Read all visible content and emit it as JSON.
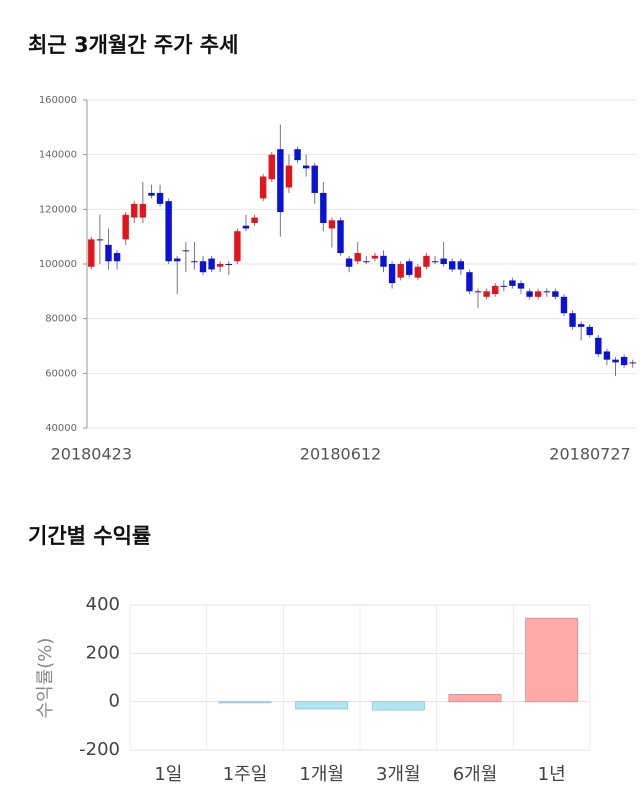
{
  "chart_data": [
    {
      "type": "candlestick",
      "title": "최근 3개월간 주가 추세",
      "categories": [
        "20180423",
        null,
        null,
        null,
        null,
        null,
        null,
        null,
        null,
        null,
        null,
        null,
        null,
        null,
        null,
        null,
        null,
        null,
        null,
        null,
        null,
        null,
        null,
        null,
        null,
        null,
        null,
        null,
        null,
        "20180612",
        null,
        null,
        null,
        null,
        null,
        null,
        null,
        null,
        null,
        null,
        null,
        null,
        null,
        null,
        null,
        null,
        null,
        null,
        null,
        null,
        null,
        null,
        null,
        null,
        null,
        null,
        null,
        null,
        null,
        null,
        null,
        null,
        null,
        "20180727"
      ],
      "open": [
        99000,
        109000,
        107000,
        104000,
        109000,
        117000,
        117000,
        126000,
        126000,
        123000,
        102000,
        105000,
        101000,
        101000,
        102000,
        99000,
        100000,
        101000,
        114000,
        115000,
        124000,
        131000,
        142000,
        128000,
        142000,
        136000,
        136000,
        126000,
        113000,
        116000,
        102000,
        101000,
        101000,
        102000,
        103000,
        100000,
        95000,
        101000,
        95000,
        99000,
        101000,
        102000,
        101000,
        101000,
        97000,
        90000,
        88000,
        89000,
        92000,
        94000,
        93000,
        90000,
        88000,
        90000,
        90000,
        88000,
        82000,
        78000,
        77000,
        73000,
        68000,
        65000,
        66000,
        64000
      ],
      "high": [
        110000,
        118000,
        113000,
        105000,
        119000,
        123000,
        130000,
        129000,
        129000,
        124000,
        103000,
        108000,
        108000,
        103000,
        103000,
        101000,
        101000,
        113000,
        118000,
        118000,
        133000,
        141000,
        151000,
        140000,
        143000,
        140000,
        137000,
        130000,
        117000,
        117000,
        103000,
        108000,
        103000,
        104000,
        105000,
        101000,
        101000,
        102000,
        100000,
        104000,
        103000,
        108000,
        102000,
        102000,
        98000,
        91000,
        91000,
        93000,
        94000,
        95000,
        94000,
        91000,
        91000,
        91000,
        91000,
        89000,
        83000,
        79000,
        78000,
        74000,
        69000,
        66000,
        67000,
        65000
      ],
      "low": [
        98000,
        100000,
        98000,
        98000,
        107000,
        115000,
        115000,
        124000,
        121000,
        100000,
        89000,
        97000,
        98000,
        96000,
        97000,
        97000,
        96000,
        100000,
        112000,
        114000,
        123000,
        130000,
        110000,
        126000,
        137000,
        132000,
        122000,
        112000,
        106000,
        103000,
        97000,
        100000,
        100000,
        101000,
        97000,
        91000,
        94000,
        95000,
        94000,
        98000,
        100000,
        99000,
        97000,
        96000,
        89000,
        84000,
        87000,
        88000,
        90000,
        91000,
        89000,
        87000,
        87000,
        88000,
        87000,
        81000,
        76000,
        72000,
        73000,
        66000,
        63000,
        59000,
        62000,
        62000
      ],
      "close": [
        109000,
        109000,
        101000,
        101000,
        118000,
        122000,
        122000,
        125000,
        122000,
        101000,
        101000,
        105000,
        101000,
        97000,
        98000,
        100000,
        100000,
        112000,
        113000,
        117000,
        132000,
        140000,
        119000,
        136000,
        138000,
        135000,
        126000,
        115000,
        116000,
        104000,
        99000,
        104000,
        101000,
        103000,
        99000,
        93000,
        100000,
        96000,
        99000,
        103000,
        101000,
        100000,
        98000,
        98000,
        90000,
        90000,
        90000,
        92000,
        92000,
        92000,
        91000,
        88000,
        90000,
        90000,
        88000,
        82000,
        77000,
        77000,
        74000,
        67000,
        65000,
        64000,
        63000,
        64000
      ],
      "up_color": "#e3141b",
      "down_color": "#0a12d6",
      "ylim": [
        40000,
        160000
      ],
      "yticks": [
        40000,
        60000,
        80000,
        100000,
        120000,
        140000,
        160000
      ],
      "grid": true
    },
    {
      "type": "bar",
      "title": "기간별 수익률",
      "ylabel": "수익률(%)",
      "categories": [
        "1일",
        "1주일",
        "1개월",
        "3개월",
        "6개월",
        "1년"
      ],
      "values": [
        0,
        -5,
        -30,
        -35,
        30,
        345
      ],
      "positive_color": "#ffaaaa",
      "negative_color": "#b0e6f2",
      "ylim": [
        -200,
        400
      ],
      "yticks": [
        -200,
        0,
        200,
        400
      ],
      "grid": true
    }
  ]
}
